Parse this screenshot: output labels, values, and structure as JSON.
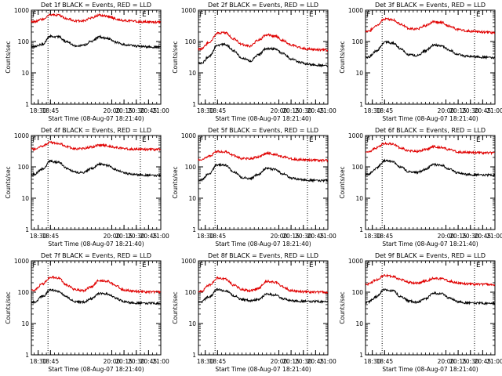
{
  "colors": {
    "events": "#000000",
    "lld": "#e00000",
    "axes": "#000000",
    "background": "#ffffff"
  },
  "shared": {
    "xlabel": "Start Time (08-Aug-07 18:21:40)",
    "ylabel": "Counts/sec",
    "ylim": [
      1,
      1000
    ],
    "yscale": "log",
    "yticks": [
      "1",
      "10",
      "100",
      "1000"
    ],
    "xlim_minutes_after_18_00": [
      21.67,
      180
    ]
  },
  "chart_data": [
    {
      "type": "line",
      "title": "Det 1f BLACK = Events, RED = LLD",
      "xtick_labels": [
        "18:30",
        "18:45",
        "20:00",
        "20:15",
        "20:30",
        "20:45",
        "21:00"
      ],
      "x": [
        "18:25",
        "18:35",
        "18:45",
        "18:55",
        "19:05",
        "19:15",
        "19:25",
        "19:35",
        "19:45",
        "19:55",
        "20:05",
        "20:15",
        "20:25",
        "20:35",
        "20:45",
        "20:55",
        "21:00"
      ],
      "series": [
        {
          "name": "Events",
          "values": [
            68,
            82,
            148,
            140,
            98,
            74,
            75,
            102,
            140,
            126,
            96,
            80,
            74,
            70,
            68,
            67,
            66
          ]
        },
        {
          "name": "LLD",
          "values": [
            430,
            510,
            720,
            690,
            540,
            450,
            460,
            560,
            700,
            640,
            530,
            470,
            450,
            430,
            420,
            415,
            410
          ]
        }
      ],
      "vlines": [
        "18:42",
        "20:35"
      ],
      "markers": [
        {
          "label": "F",
          "x": "18:22"
        },
        {
          "label": "E",
          "x": "20:36"
        }
      ]
    },
    {
      "type": "line",
      "title": "Det 2f BLACK = Events, RED = LLD",
      "xtick_labels": [
        "18:30",
        "18:45",
        "20:00",
        "20:15",
        "20:30",
        "20:45",
        "21:00"
      ],
      "x": [
        "18:25",
        "18:35",
        "18:45",
        "18:55",
        "19:05",
        "19:15",
        "19:25",
        "19:35",
        "19:45",
        "19:55",
        "20:05",
        "20:15",
        "20:25",
        "20:35",
        "20:45",
        "20:55",
        "21:00"
      ],
      "series": [
        {
          "name": "Events",
          "values": [
            20,
            34,
            78,
            80,
            50,
            30,
            24,
            38,
            60,
            58,
            42,
            28,
            22,
            19,
            18,
            17,
            17
          ]
        },
        {
          "name": "LLD",
          "values": [
            58,
            95,
            185,
            190,
            120,
            80,
            72,
            110,
            165,
            150,
            110,
            78,
            65,
            58,
            55,
            54,
            53
          ]
        }
      ],
      "vlines": [
        "18:42",
        "20:35"
      ],
      "markers": [
        {
          "label": "F",
          "x": "18:22"
        },
        {
          "label": "E",
          "x": "20:36"
        }
      ]
    },
    {
      "type": "line",
      "title": "Det 3f BLACK = Events, RED = LLD",
      "xtick_labels": [
        "18:30",
        "18:45",
        "20:00",
        "20:15",
        "20:30",
        "20:45",
        "21:00"
      ],
      "x": [
        "18:25",
        "18:35",
        "18:45",
        "18:55",
        "19:05",
        "19:15",
        "19:25",
        "19:35",
        "19:45",
        "19:55",
        "20:05",
        "20:15",
        "20:25",
        "20:35",
        "20:45",
        "20:55",
        "21:00"
      ],
      "series": [
        {
          "name": "Events",
          "values": [
            32,
            50,
            95,
            90,
            58,
            38,
            36,
            50,
            78,
            72,
            52,
            38,
            34,
            33,
            32,
            31,
            30
          ]
        },
        {
          "name": "LLD",
          "values": [
            210,
            320,
            520,
            500,
            350,
            260,
            250,
            320,
            430,
            400,
            310,
            240,
            220,
            210,
            200,
            195,
            190
          ]
        }
      ],
      "vlines": [
        "18:42",
        "20:35"
      ],
      "markers": [
        {
          "label": "F",
          "x": "18:22"
        },
        {
          "label": "E",
          "x": "20:36"
        }
      ]
    },
    {
      "type": "line",
      "title": "Det 4f BLACK = Events, RED = LLD",
      "xtick_labels": [
        "18:30",
        "18:45",
        "20:00",
        "20:15",
        "20:30",
        "20:45",
        "21:00"
      ],
      "x": [
        "18:25",
        "18:35",
        "18:45",
        "18:55",
        "19:05",
        "19:15",
        "19:25",
        "19:35",
        "19:45",
        "19:55",
        "20:05",
        "20:15",
        "20:25",
        "20:35",
        "20:45",
        "20:55",
        "21:00"
      ],
      "series": [
        {
          "name": "Events",
          "values": [
            58,
            85,
            150,
            140,
            92,
            68,
            66,
            88,
            122,
            112,
            82,
            64,
            58,
            56,
            54,
            53,
            52
          ]
        },
        {
          "name": "LLD",
          "values": [
            370,
            460,
            600,
            560,
            440,
            380,
            380,
            430,
            500,
            470,
            420,
            380,
            370,
            365,
            360,
            360,
            360
          ]
        }
      ],
      "vlines": [
        "18:42",
        "20:35"
      ],
      "markers": [
        {
          "label": "F",
          "x": "18:22"
        },
        {
          "label": "E",
          "x": "20:36"
        }
      ]
    },
    {
      "type": "line",
      "title": "Det 5f BLACK = Events, RED = LLD",
      "xtick_labels": [
        "18:30",
        "18:45",
        "20:00",
        "20:15",
        "20:30",
        "20:45",
        "21:00"
      ],
      "x": [
        "18:25",
        "18:35",
        "18:45",
        "18:55",
        "19:05",
        "19:15",
        "19:25",
        "19:35",
        "19:45",
        "19:55",
        "20:05",
        "20:15",
        "20:25",
        "20:35",
        "20:45",
        "20:55",
        "21:00"
      ],
      "series": [
        {
          "name": "Events",
          "values": [
            38,
            62,
            118,
            112,
            70,
            46,
            42,
            58,
            90,
            84,
            60,
            44,
            40,
            38,
            37,
            36,
            36
          ]
        },
        {
          "name": "LLD",
          "values": [
            170,
            220,
            310,
            300,
            230,
            185,
            180,
            210,
            270,
            255,
            210,
            180,
            170,
            165,
            162,
            160,
            160
          ]
        }
      ],
      "vlines": [
        "18:42",
        "20:35"
      ],
      "markers": [
        {
          "label": "F",
          "x": "18:22"
        },
        {
          "label": "E",
          "x": "20:36"
        }
      ]
    },
    {
      "type": "line",
      "title": "Det 6f BLACK = Events, RED = LLD",
      "xtick_labels": [
        "18:30",
        "18:45",
        "20:00",
        "20:15",
        "20:30",
        "20:45",
        "21:00"
      ],
      "x": [
        "18:25",
        "18:35",
        "18:45",
        "18:55",
        "19:05",
        "19:15",
        "19:25",
        "19:35",
        "19:45",
        "19:55",
        "20:05",
        "20:15",
        "20:25",
        "20:35",
        "20:45",
        "20:55",
        "21:00"
      ],
      "series": [
        {
          "name": "Events",
          "values": [
            58,
            90,
            158,
            148,
            98,
            70,
            66,
            84,
            120,
            112,
            82,
            64,
            58,
            56,
            55,
            54,
            54
          ]
        },
        {
          "name": "LLD",
          "values": [
            300,
            400,
            560,
            530,
            400,
            320,
            310,
            360,
            440,
            420,
            350,
            300,
            290,
            285,
            280,
            278,
            275
          ]
        }
      ],
      "vlines": [
        "18:42",
        "20:35"
      ],
      "markers": [
        {
          "label": "F",
          "x": "18:22"
        },
        {
          "label": "E",
          "x": "20:36"
        }
      ]
    },
    {
      "type": "line",
      "title": "Det 7f BLACK = Events, RED = LLD",
      "xtick_labels": [
        "18:30",
        "18:45",
        "20:00",
        "20:15",
        "20:30",
        "20:45",
        "21:00"
      ],
      "x": [
        "18:25",
        "18:35",
        "18:45",
        "18:55",
        "19:05",
        "19:15",
        "19:25",
        "19:35",
        "19:45",
        "19:55",
        "20:05",
        "20:15",
        "20:25",
        "20:35",
        "20:45",
        "20:55",
        "21:00"
      ],
      "series": [
        {
          "name": "Events",
          "values": [
            48,
            72,
            118,
            108,
            70,
            50,
            48,
            62,
            92,
            88,
            64,
            50,
            46,
            45,
            44,
            44,
            43
          ]
        },
        {
          "name": "LLD",
          "values": [
            115,
            180,
            300,
            280,
            170,
            120,
            112,
            150,
            240,
            225,
            160,
            118,
            108,
            104,
            102,
            101,
            100
          ]
        }
      ],
      "vlines": [
        "18:42",
        "20:35"
      ],
      "markers": [
        {
          "label": "F",
          "x": "18:22"
        },
        {
          "label": "E",
          "x": "20:36"
        }
      ]
    },
    {
      "type": "line",
      "title": "Det 8f BLACK = Events, RED = LLD",
      "xtick_labels": [
        "18:30",
        "18:45",
        "20:00",
        "20:15",
        "20:30",
        "20:45",
        "21:00"
      ],
      "x": [
        "18:25",
        "18:35",
        "18:45",
        "18:55",
        "19:05",
        "19:15",
        "19:25",
        "19:35",
        "19:45",
        "19:55",
        "20:05",
        "20:15",
        "20:25",
        "20:35",
        "20:45",
        "20:55",
        "21:00"
      ],
      "series": [
        {
          "name": "Events",
          "values": [
            50,
            72,
            122,
            112,
            78,
            58,
            54,
            58,
            88,
            82,
            62,
            54,
            52,
            51,
            50,
            50,
            50
          ]
        },
        {
          "name": "LLD",
          "values": [
            105,
            170,
            280,
            262,
            168,
            120,
            112,
            132,
            225,
            210,
            150,
            112,
            105,
            102,
            100,
            99,
            98
          ]
        }
      ],
      "vlines": [
        "18:42",
        "20:35"
      ],
      "markers": [
        {
          "label": "F",
          "x": "18:22"
        },
        {
          "label": "E",
          "x": "20:36"
        }
      ]
    },
    {
      "type": "line",
      "title": "Det 9f BLACK = Events, RED = LLD",
      "xtick_labels": [
        "18:30",
        "18:45",
        "20:00",
        "20:15",
        "20:30",
        "20:45",
        "21:00"
      ],
      "x": [
        "18:25",
        "18:35",
        "18:45",
        "18:55",
        "19:05",
        "19:15",
        "19:25",
        "19:35",
        "19:45",
        "19:55",
        "20:05",
        "20:15",
        "20:25",
        "20:35",
        "20:45",
        "20:55",
        "21:00"
      ],
      "series": [
        {
          "name": "Events",
          "values": [
            48,
            72,
            122,
            112,
            72,
            52,
            48,
            62,
            94,
            88,
            64,
            50,
            46,
            45,
            44,
            44,
            44
          ]
        },
        {
          "name": "LLD",
          "values": [
            180,
            250,
            340,
            320,
            250,
            205,
            195,
            225,
            280,
            268,
            225,
            195,
            185,
            180,
            178,
            176,
            175
          ]
        }
      ],
      "vlines": [
        "18:42",
        "20:35"
      ],
      "markers": [
        {
          "label": "F",
          "x": "18:22"
        },
        {
          "label": "E",
          "x": "20:36"
        }
      ]
    }
  ]
}
